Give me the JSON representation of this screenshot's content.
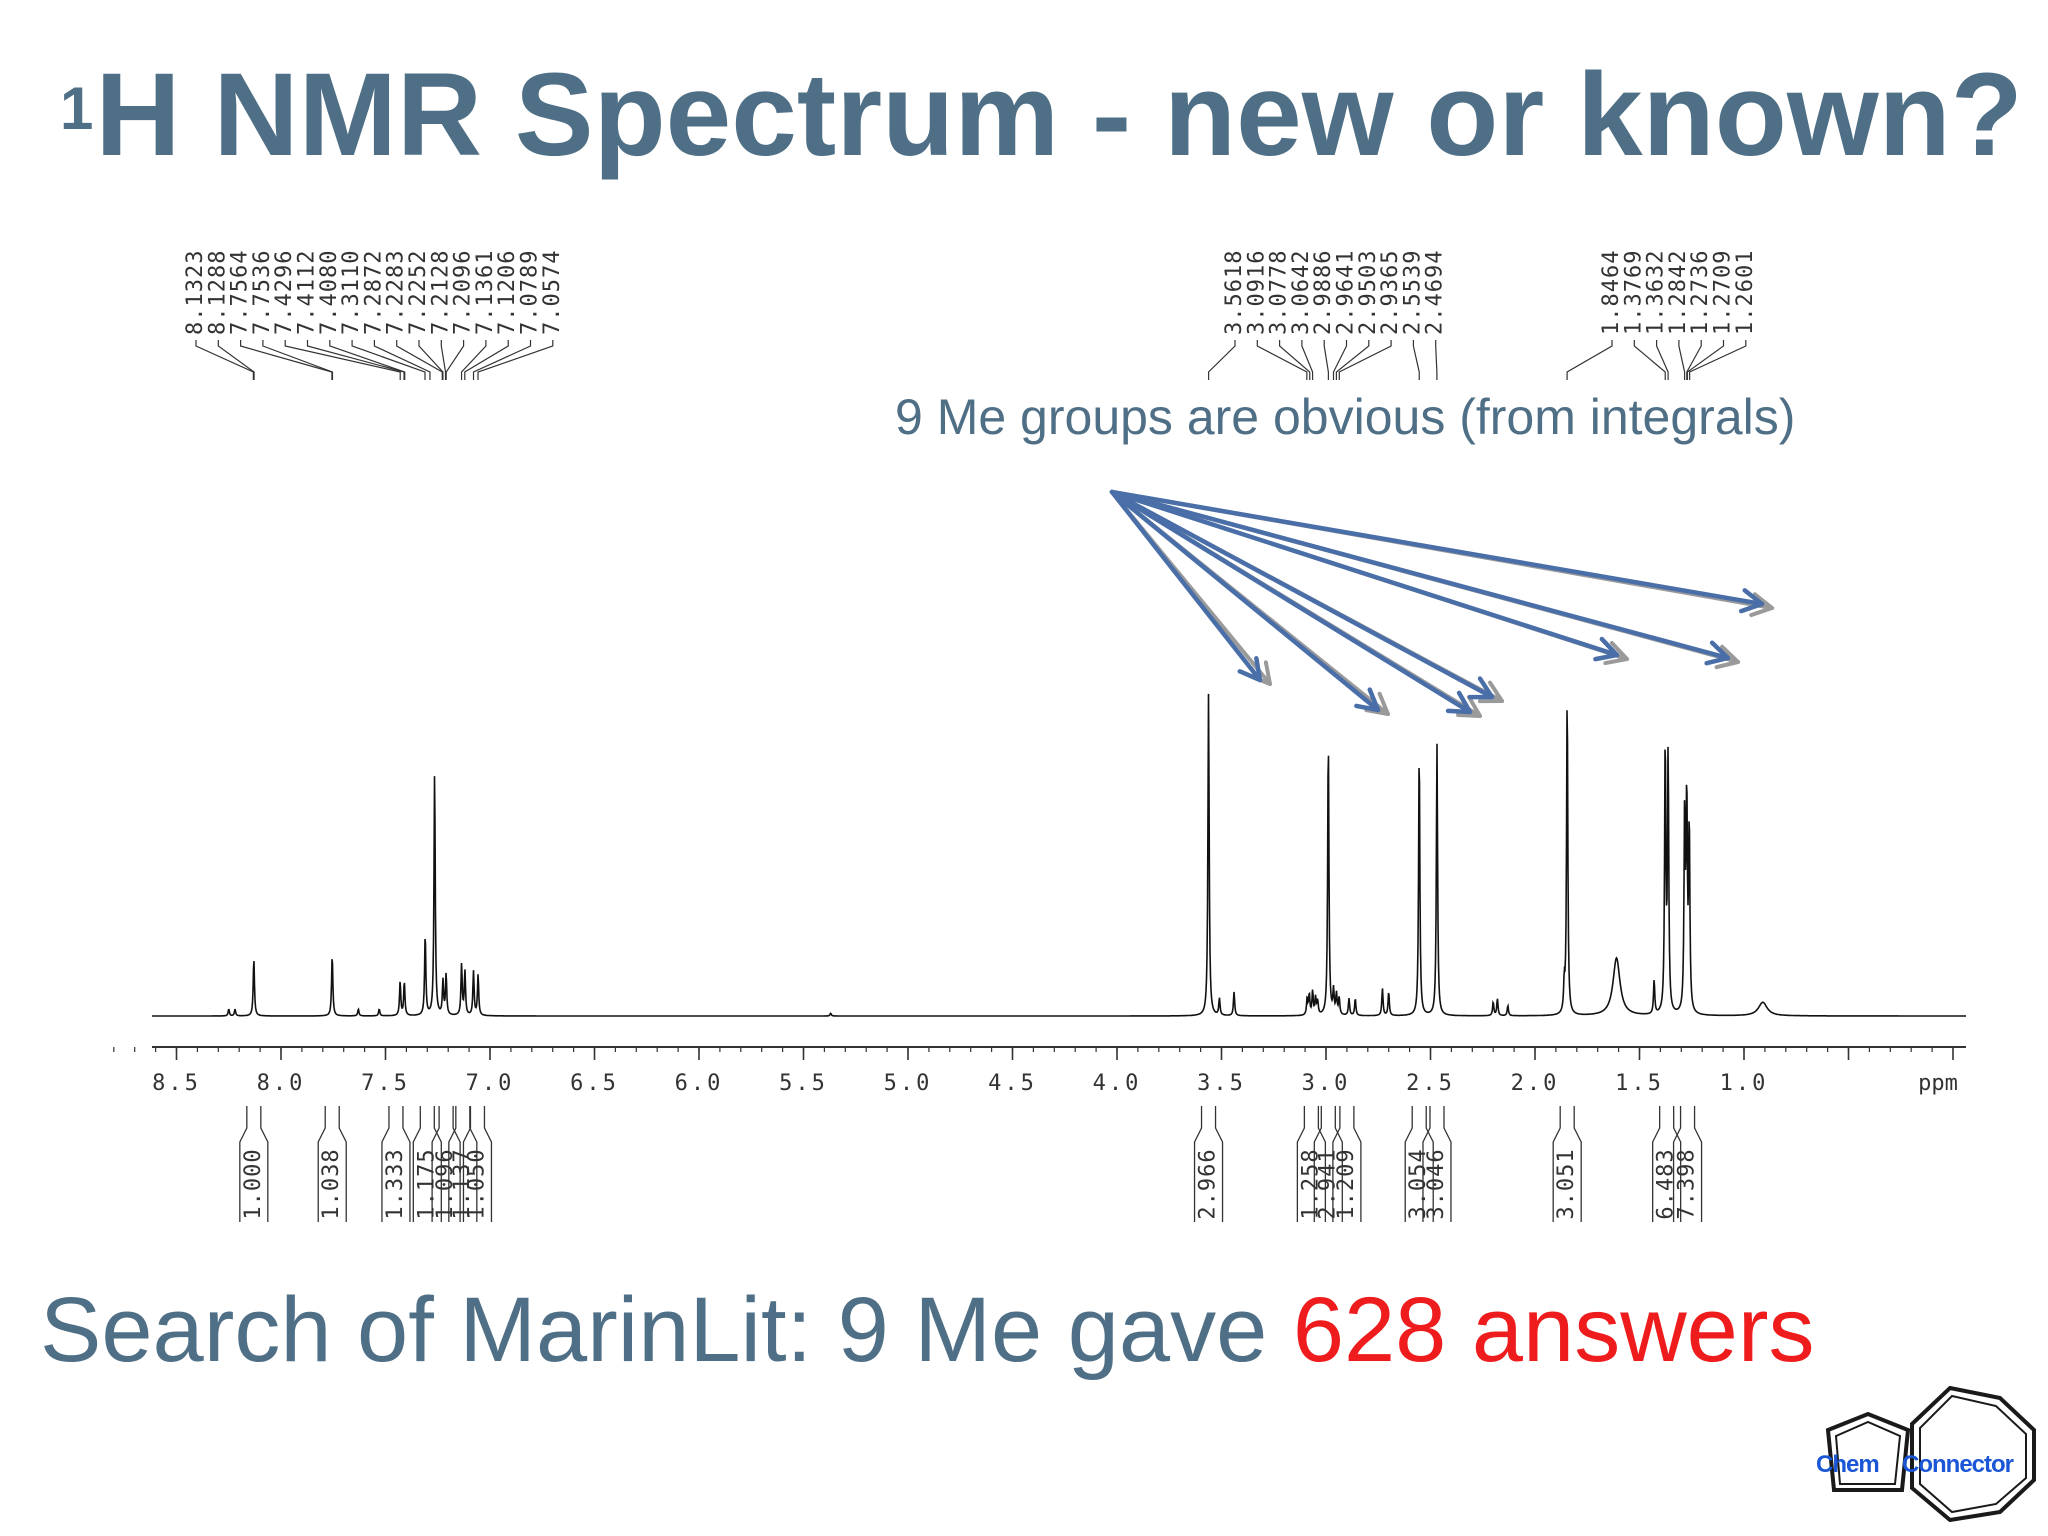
{
  "slide": {
    "title_sup": "1",
    "title_main": "H NMR Spectrum - new or known?",
    "annotation": "9 Me groups are obvious (from integrals)",
    "search_prefix": "Search of MarinLit:  9 Me gave ",
    "search_highlight": "628 answers",
    "logo": {
      "word1": "Chem",
      "word2": "Connector",
      "colors": {
        "text": "#1a56d6",
        "outline": "#1a1a1a"
      }
    }
  },
  "colors": {
    "title": "#4f6f86",
    "highlight": "#ee1c1c",
    "arrow_blue": "#4a6fa8",
    "arrow_gray": "#9a9a9a"
  },
  "chart_data": {
    "type": "line",
    "x_unit": "ppm",
    "xlim": [
      8.8,
      0.1
    ],
    "x_reversed": true,
    "x_ticks": [
      "8.5",
      "8.0",
      "7.5",
      "7.0",
      "6.5",
      "6.0",
      "5.5",
      "5.0",
      "4.5",
      "4.0",
      "3.5",
      "3.0",
      "2.5",
      "2.0",
      "1.5",
      "1.0"
    ],
    "peaks": [
      {
        "x": 8.13,
        "h": 0.17
      },
      {
        "x": 8.25,
        "h": 0.02
      },
      {
        "x": 8.22,
        "h": 0.02
      },
      {
        "x": 7.755,
        "h": 0.18
      },
      {
        "x": 7.63,
        "h": 0.02
      },
      {
        "x": 7.53,
        "h": 0.02
      },
      {
        "x": 7.43,
        "h": 0.1
      },
      {
        "x": 7.41,
        "h": 0.1
      },
      {
        "x": 7.31,
        "h": 0.24
      },
      {
        "x": 7.265,
        "h": 0.72
      },
      {
        "x": 7.225,
        "h": 0.1
      },
      {
        "x": 7.21,
        "h": 0.12
      },
      {
        "x": 7.136,
        "h": 0.15
      },
      {
        "x": 7.12,
        "h": 0.13
      },
      {
        "x": 7.079,
        "h": 0.13
      },
      {
        "x": 7.057,
        "h": 0.12
      },
      {
        "x": 5.37,
        "h": 0.008
      },
      {
        "x": 3.562,
        "h": 0.95
      },
      {
        "x": 3.51,
        "h": 0.05
      },
      {
        "x": 3.44,
        "h": 0.07
      },
      {
        "x": 3.09,
        "h": 0.05
      },
      {
        "x": 3.08,
        "h": 0.06
      },
      {
        "x": 3.064,
        "h": 0.07
      },
      {
        "x": 3.05,
        "h": 0.05
      },
      {
        "x": 3.04,
        "h": 0.04
      },
      {
        "x": 2.989,
        "h": 0.82
      },
      {
        "x": 2.964,
        "h": 0.07
      },
      {
        "x": 2.95,
        "h": 0.06
      },
      {
        "x": 2.937,
        "h": 0.05
      },
      {
        "x": 2.89,
        "h": 0.05
      },
      {
        "x": 2.86,
        "h": 0.05
      },
      {
        "x": 2.73,
        "h": 0.08
      },
      {
        "x": 2.7,
        "h": 0.07
      },
      {
        "x": 2.554,
        "h": 0.79
      },
      {
        "x": 2.469,
        "h": 0.8
      },
      {
        "x": 2.2,
        "h": 0.04
      },
      {
        "x": 2.18,
        "h": 0.05
      },
      {
        "x": 2.13,
        "h": 0.03
      },
      {
        "x": 1.86,
        "h": 0.08
      },
      {
        "x": 1.846,
        "h": 0.95
      },
      {
        "x": 1.61,
        "h": 0.17,
        "w": 0.02
      },
      {
        "x": 1.43,
        "h": 0.1
      },
      {
        "x": 1.377,
        "h": 0.8
      },
      {
        "x": 1.363,
        "h": 0.76
      },
      {
        "x": 1.284,
        "h": 0.58
      },
      {
        "x": 1.274,
        "h": 0.62
      },
      {
        "x": 1.262,
        "h": 0.55
      },
      {
        "x": 0.91,
        "h": 0.04,
        "w": 0.025
      }
    ],
    "peak_labels_left": [
      "8.1323",
      "8.1288",
      "7.7564",
      "7.7536",
      "7.4296",
      "7.4112",
      "7.4080",
      "7.3110",
      "7.2872",
      "7.2283",
      "7.2252",
      "7.2128",
      "7.2096",
      "7.1361",
      "7.1206",
      "7.0789",
      "7.0574"
    ],
    "peak_labels_right": [
      "3.5618",
      "3.0916",
      "3.0778",
      "3.0642",
      "2.9886",
      "2.9641",
      "2.9503",
      "2.9365",
      "2.5539",
      "2.4694"
    ],
    "peak_labels_far_right": [
      "1.8464",
      "1.3769",
      "1.3632",
      "1.2842",
      "1.2736",
      "1.2709",
      "1.2601"
    ],
    "integrals": [
      {
        "x": 8.13,
        "label": "1.000"
      },
      {
        "x": 7.755,
        "label": "1.038"
      },
      {
        "x": 7.45,
        "label": "1.333"
      },
      {
        "x": 7.3,
        "label": "1.175"
      },
      {
        "x": 7.21,
        "label": "1.096"
      },
      {
        "x": 7.13,
        "label": "1.137"
      },
      {
        "x": 7.06,
        "label": "1.050"
      },
      {
        "x": 3.562,
        "label": "2.966"
      },
      {
        "x": 3.07,
        "label": "1.258"
      },
      {
        "x": 2.989,
        "label": "2.941"
      },
      {
        "x": 2.9,
        "label": "1.209"
      },
      {
        "x": 2.554,
        "label": "3.054"
      },
      {
        "x": 2.469,
        "label": "3.046"
      },
      {
        "x": 1.846,
        "label": "3.051"
      },
      {
        "x": 1.37,
        "label": "6.483"
      },
      {
        "x": 1.27,
        "label": "7.398"
      }
    ],
    "arrow_targets": [
      3.562,
      2.989,
      2.554,
      2.469,
      1.846,
      1.377,
      1.274
    ]
  }
}
